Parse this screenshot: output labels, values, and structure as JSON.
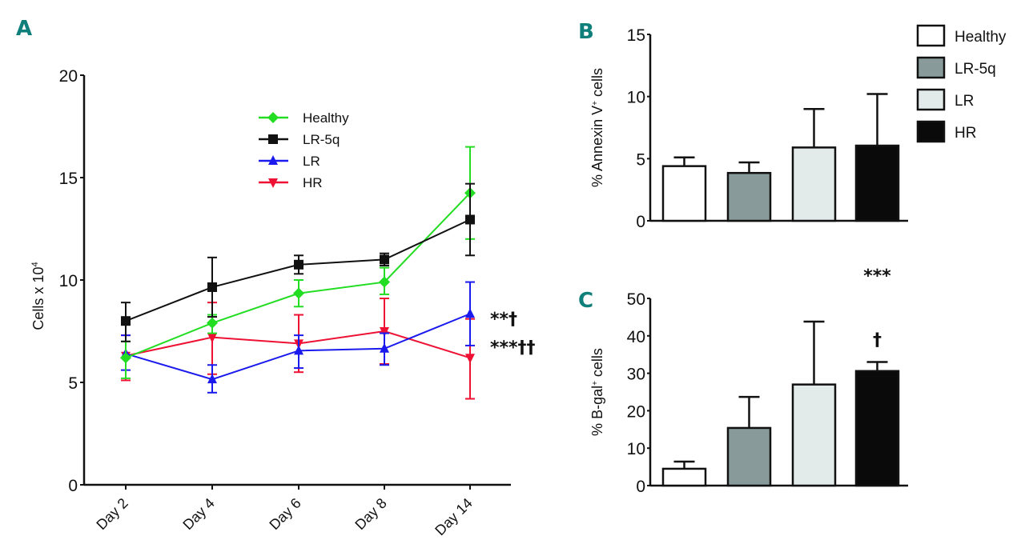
{
  "chart_data": [
    {
      "panel": "A",
      "type": "line",
      "title": "",
      "xlabel": "",
      "ylabel": "Cells x 10",
      "ylabel_superscript": "4",
      "ylim": [
        0,
        20
      ],
      "yticks": [
        "0",
        "5",
        "10",
        "15",
        "20"
      ],
      "yticks_values": [
        0,
        5,
        10,
        15,
        20
      ],
      "categories": [
        "Day 2",
        "Day 4",
        "Day 6",
        "Day 8",
        "Day 14"
      ],
      "legend_position": "top-center",
      "series": [
        {
          "name": "Healthy",
          "color": "#22dd22",
          "marker": "diamond",
          "values": [
            6.2,
            7.9,
            9.35,
            9.9,
            14.25
          ],
          "err_low": [
            5.2,
            7.4,
            8.7,
            9.3,
            12.0
          ],
          "err_high": [
            7.0,
            8.3,
            10.0,
            10.6,
            16.5
          ]
        },
        {
          "name": "LR-5q",
          "color": "#111111",
          "marker": "square",
          "values": [
            8.0,
            9.65,
            10.75,
            11.0,
            12.95
          ],
          "err_low": [
            7.0,
            8.2,
            10.3,
            10.7,
            11.2
          ],
          "err_high": [
            8.9,
            11.1,
            11.2,
            11.3,
            14.7
          ]
        },
        {
          "name": "LR",
          "color": "#1a1aee",
          "marker": "triangle-up",
          "values": [
            6.4,
            5.15,
            6.55,
            6.65,
            8.35
          ],
          "err_low": [
            5.6,
            4.5,
            5.7,
            5.85,
            6.8
          ],
          "err_high": [
            7.3,
            5.85,
            7.3,
            7.4,
            9.9
          ]
        },
        {
          "name": "HR",
          "color": "#ee1133",
          "marker": "triangle-down",
          "values": [
            6.3,
            7.2,
            6.9,
            7.5,
            6.2
          ],
          "err_low": [
            5.1,
            5.4,
            5.5,
            5.9,
            4.2
          ],
          "err_high": [
            7.3,
            8.9,
            8.3,
            9.1,
            8.1
          ]
        }
      ],
      "annotations": [
        {
          "text": "**†",
          "series": "LR"
        },
        {
          "text": "***††",
          "series": "HR"
        }
      ]
    },
    {
      "panel": "B",
      "type": "bar",
      "ylabel": "% Annexin V",
      "ylabel_superscript": "+",
      "ylabel_suffix": " cells",
      "ylim": [
        0,
        15
      ],
      "yticks": [
        "0",
        "5",
        "10",
        "15"
      ],
      "yticks_values": [
        0,
        5,
        10,
        15
      ],
      "categories": [
        "Healthy",
        "LR-5q",
        "LR",
        "HR"
      ],
      "values": [
        4.4,
        3.85,
        5.9,
        6.05
      ],
      "err_high": [
        5.1,
        4.7,
        9.0,
        10.2
      ],
      "fills": [
        "#ffffff",
        "#889a9a",
        "#e2eaea",
        "#0a0a0a"
      ],
      "legend_position": "right"
    },
    {
      "panel": "C",
      "type": "bar",
      "ylabel": "% B-gal",
      "ylabel_superscript": "+",
      "ylabel_suffix": " cells",
      "ylim": [
        0,
        50
      ],
      "yticks": [
        "0",
        "10",
        "20",
        "30",
        "40",
        "50"
      ],
      "yticks_values": [
        0,
        10,
        20,
        30,
        40,
        50
      ],
      "categories": [
        "Healthy",
        "LR-5q",
        "LR",
        "HR"
      ],
      "values": [
        4.5,
        15.4,
        27.0,
        30.6
      ],
      "err_high": [
        6.4,
        23.7,
        43.8,
        33.0
      ],
      "fills": [
        "#ffffff",
        "#889a9a",
        "#e2eaea",
        "#0a0a0a"
      ],
      "annotations": [
        {
          "text": "***",
          "category": "HR"
        },
        {
          "text": "†",
          "category": "HR"
        }
      ]
    }
  ],
  "panels": {
    "a": "A",
    "b": "B",
    "c": "C"
  },
  "legend_bars": [
    "Healthy",
    "LR-5q",
    "LR",
    "HR"
  ]
}
